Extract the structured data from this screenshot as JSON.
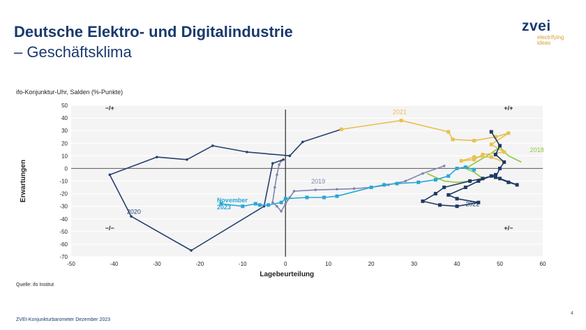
{
  "slide": {
    "title_line1": "Deutsche Elektro- und Digitalindustrie",
    "title_line2": "– Geschäftsklima",
    "logo_text": "zvei",
    "logo_tagline_1": "electrifying",
    "logo_tagline_2": "ideas",
    "source": "Quelle: ifo Institut",
    "footer": "ZVEI-Konjunkturbarometer Dezember 2023",
    "page_number": "4"
  },
  "colors": {
    "title": "#1a3a6e",
    "s2018": "#8cc63f",
    "s2019": "#7f85b2",
    "s2020": "#25406f",
    "s2021": "#e8c04e",
    "s2022": "#1e3a64",
    "s2023": "#2aa7d4"
  },
  "chart_data": {
    "type": "scatter",
    "title": "ifo-Konjunktur-Uhr, Salden (%-Punkte)",
    "xlabel": "Lagebeurteilung",
    "ylabel": "Erwartungen",
    "xlim": [
      -50,
      60
    ],
    "ylim": [
      -70,
      50
    ],
    "xticks": [
      -50,
      -40,
      -30,
      -20,
      -10,
      0,
      10,
      20,
      30,
      40,
      50,
      60
    ],
    "yticks": [
      -70,
      -60,
      -50,
      -40,
      -30,
      -20,
      -10,
      0,
      10,
      20,
      30,
      40,
      50
    ],
    "grid": "horizontal",
    "quadrant_labels": [
      {
        "text": "−/+",
        "x": -41,
        "y": 46
      },
      {
        "text": "+/+",
        "x": 52,
        "y": 46
      },
      {
        "text": "−/−",
        "x": -41,
        "y": -49
      },
      {
        "text": "+/−",
        "x": 52,
        "y": -49
      }
    ],
    "series": [
      {
        "name": "2018",
        "color_key": "s2018",
        "marker": "none",
        "label_x": 57,
        "label_y": 13,
        "points": [
          [
            55,
            5
          ],
          [
            52,
            10
          ],
          [
            50,
            17
          ],
          [
            48,
            12
          ],
          [
            46,
            8
          ],
          [
            44,
            4
          ],
          [
            42,
            0
          ],
          [
            44,
            -3
          ],
          [
            46,
            -8
          ],
          [
            43,
            -10
          ],
          [
            40,
            -11
          ],
          [
            37,
            -10
          ],
          [
            35,
            -7
          ],
          [
            33,
            -4
          ]
        ]
      },
      {
        "name": "2019",
        "color_key": "s2019",
        "marker": "small",
        "label_x": 6,
        "label_y": -12,
        "points": [
          [
            37,
            2
          ],
          [
            32,
            -4
          ],
          [
            28,
            -10
          ],
          [
            24,
            -13
          ],
          [
            20,
            -15
          ],
          [
            16,
            -16
          ],
          [
            12,
            -16.5
          ],
          [
            7,
            -17
          ],
          [
            2,
            -18
          ],
          [
            1,
            -23
          ],
          [
            0,
            -28
          ],
          [
            -1,
            -34
          ],
          [
            -2,
            -30
          ],
          [
            -3,
            -27
          ],
          [
            -2.5,
            -15
          ],
          [
            -2,
            -5
          ],
          [
            -1.5,
            3
          ],
          [
            -1,
            6
          ]
        ]
      },
      {
        "name": "2020",
        "color_key": "s2020",
        "marker": "small",
        "label_x": -37,
        "label_y": -36,
        "points": [
          [
            -0.5,
            7
          ],
          [
            -3,
            4
          ],
          [
            -5,
            -30
          ],
          [
            -22,
            -65
          ],
          [
            -36,
            -38
          ],
          [
            -41,
            -5
          ],
          [
            -30,
            9
          ],
          [
            -23,
            7
          ],
          [
            -17,
            18
          ],
          [
            -9,
            13
          ],
          [
            1,
            10
          ],
          [
            4,
            21
          ],
          [
            13,
            31
          ]
        ]
      },
      {
        "name": "2021",
        "color_key": "s2021",
        "marker": "square",
        "label_x": 25,
        "label_y": 43,
        "points": [
          [
            13,
            31
          ],
          [
            27,
            38
          ],
          [
            38,
            29
          ],
          [
            39,
            23
          ],
          [
            44,
            22
          ],
          [
            49,
            25
          ],
          [
            52,
            28
          ],
          [
            48,
            19
          ],
          [
            51,
            13
          ],
          [
            46,
            11
          ],
          [
            44,
            7
          ],
          [
            41,
            6
          ],
          [
            44,
            9
          ],
          [
            48,
            9
          ],
          [
            51,
            5
          ]
        ]
      },
      {
        "name": "2022",
        "color_key": "s2022",
        "marker": "square",
        "label_x": 42,
        "label_y": -30,
        "points": [
          [
            48,
            29
          ],
          [
            50,
            18
          ],
          [
            49,
            11
          ],
          [
            51,
            5
          ],
          [
            50,
            0
          ],
          [
            49,
            -7
          ],
          [
            52,
            -11
          ],
          [
            54,
            -13
          ],
          [
            50,
            -8
          ],
          [
            48,
            -6
          ],
          [
            45,
            -10
          ],
          [
            42,
            -15
          ],
          [
            38,
            -21
          ],
          [
            40,
            -24
          ],
          [
            45,
            -27
          ],
          [
            40,
            -30
          ],
          [
            36,
            -29
          ],
          [
            32,
            -26
          ],
          [
            35,
            -20
          ],
          [
            37,
            -15
          ],
          [
            43,
            -10
          ],
          [
            46,
            -8
          ],
          [
            49,
            -5
          ]
        ]
      },
      {
        "name": "November 2023",
        "label_lines": [
          "November",
          "2023"
        ],
        "color_key": "s2023",
        "marker": "square",
        "label_x": -16,
        "label_y": -27,
        "points": [
          [
            44,
            -1
          ],
          [
            42,
            1
          ],
          [
            40,
            0
          ],
          [
            38,
            -6
          ],
          [
            35,
            -9
          ],
          [
            31,
            -11
          ],
          [
            26,
            -12
          ],
          [
            23,
            -13
          ],
          [
            20,
            -15
          ],
          [
            12,
            -22
          ],
          [
            9,
            -23
          ],
          [
            5,
            -23
          ],
          [
            0,
            -24
          ],
          [
            -1,
            -27
          ],
          [
            -4,
            -29
          ],
          [
            -6,
            -29
          ],
          [
            -7,
            -28
          ],
          [
            -10,
            -30
          ],
          [
            -15,
            -28
          ]
        ]
      }
    ]
  }
}
